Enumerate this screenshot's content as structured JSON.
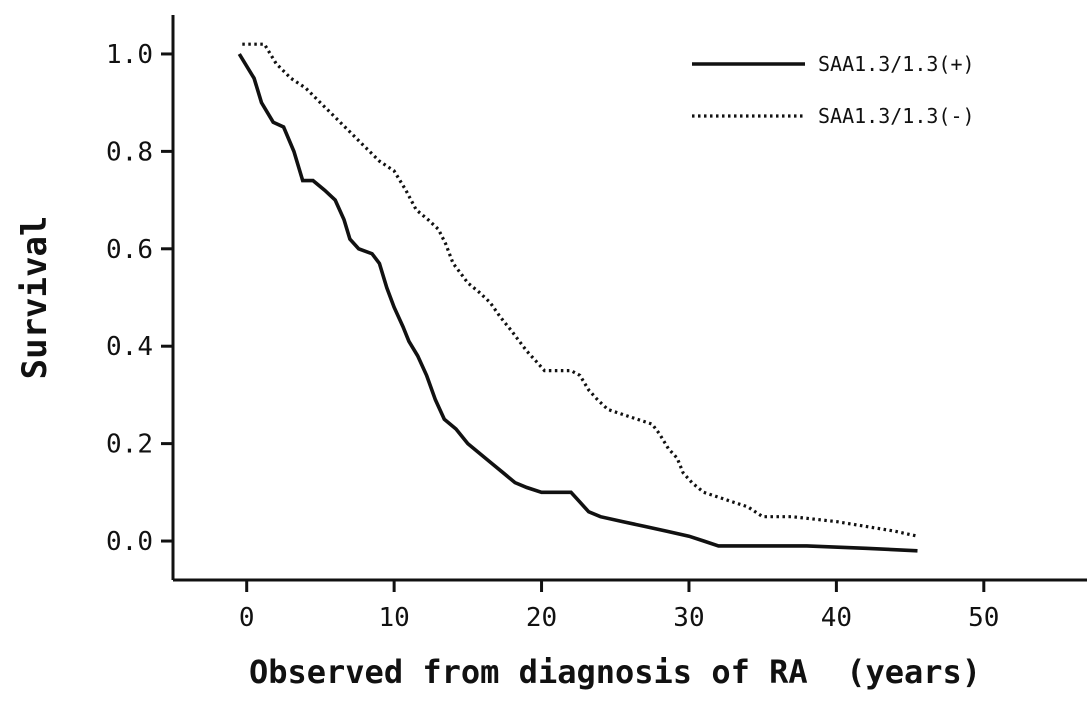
{
  "chart_data": {
    "type": "line",
    "title": "",
    "xlabel": "Observed from diagnosis of RA  (years)",
    "ylabel": "Survival",
    "xlim": [
      -5,
      57
    ],
    "ylim": [
      -0.08,
      1.08
    ],
    "x_ticks": [
      0,
      10,
      20,
      30,
      40,
      50
    ],
    "x_tick_labels": [
      "0",
      "10",
      "20",
      "30",
      "40",
      "50"
    ],
    "y_ticks": [
      0.0,
      0.2,
      0.4,
      0.6,
      0.8,
      1.0
    ],
    "y_tick_labels": [
      "0.0",
      "0.2",
      "0.4",
      "0.6",
      "0.8",
      "1.0"
    ],
    "grid": false,
    "legend_position": "top-right",
    "series": [
      {
        "name": "SAA1.3/1.3(+)",
        "line_style": "solid",
        "color": "#111111",
        "points": [
          [
            -0.5,
            1.0
          ],
          [
            0.5,
            0.95
          ],
          [
            1.0,
            0.9
          ],
          [
            1.8,
            0.86
          ],
          [
            2.5,
            0.85
          ],
          [
            3.2,
            0.8
          ],
          [
            3.8,
            0.74
          ],
          [
            4.5,
            0.74
          ],
          [
            5.3,
            0.72
          ],
          [
            6.0,
            0.7
          ],
          [
            6.6,
            0.66
          ],
          [
            7.0,
            0.62
          ],
          [
            7.6,
            0.6
          ],
          [
            8.5,
            0.59
          ],
          [
            9.0,
            0.57
          ],
          [
            9.5,
            0.52
          ],
          [
            10.0,
            0.48
          ],
          [
            10.6,
            0.44
          ],
          [
            11.0,
            0.41
          ],
          [
            11.6,
            0.38
          ],
          [
            12.2,
            0.34
          ],
          [
            12.8,
            0.29
          ],
          [
            13.4,
            0.25
          ],
          [
            14.2,
            0.23
          ],
          [
            15.0,
            0.2
          ],
          [
            15.8,
            0.18
          ],
          [
            16.6,
            0.16
          ],
          [
            17.4,
            0.14
          ],
          [
            18.2,
            0.12
          ],
          [
            19.0,
            0.11
          ],
          [
            20.0,
            0.1
          ],
          [
            21.0,
            0.1
          ],
          [
            22.0,
            0.1
          ],
          [
            22.6,
            0.08
          ],
          [
            23.2,
            0.06
          ],
          [
            24.0,
            0.05
          ],
          [
            25.5,
            0.04
          ],
          [
            27.0,
            0.03
          ],
          [
            28.5,
            0.02
          ],
          [
            30.0,
            0.01
          ],
          [
            31.0,
            0.0
          ],
          [
            32.0,
            -0.01
          ],
          [
            35.0,
            -0.01
          ],
          [
            38.0,
            -0.01
          ],
          [
            42.0,
            -0.015
          ],
          [
            45.5,
            -0.02
          ]
        ]
      },
      {
        "name": "SAA1.3/1.3(-)",
        "line_style": "dotted",
        "color": "#111111",
        "points": [
          [
            -0.3,
            1.02
          ],
          [
            1.2,
            1.02
          ],
          [
            2.0,
            0.98
          ],
          [
            3.0,
            0.95
          ],
          [
            4.0,
            0.93
          ],
          [
            5.0,
            0.9
          ],
          [
            6.0,
            0.87
          ],
          [
            7.0,
            0.84
          ],
          [
            8.0,
            0.81
          ],
          [
            9.0,
            0.78
          ],
          [
            10.0,
            0.76
          ],
          [
            10.8,
            0.72
          ],
          [
            11.5,
            0.68
          ],
          [
            12.3,
            0.66
          ],
          [
            13.0,
            0.64
          ],
          [
            13.5,
            0.61
          ],
          [
            14.0,
            0.57
          ],
          [
            14.5,
            0.55
          ],
          [
            15.0,
            0.53
          ],
          [
            15.8,
            0.51
          ],
          [
            16.5,
            0.49
          ],
          [
            17.2,
            0.46
          ],
          [
            18.0,
            0.43
          ],
          [
            18.5,
            0.41
          ],
          [
            19.0,
            0.39
          ],
          [
            19.6,
            0.37
          ],
          [
            20.2,
            0.35
          ],
          [
            21.0,
            0.35
          ],
          [
            22.0,
            0.35
          ],
          [
            22.6,
            0.34
          ],
          [
            23.2,
            0.31
          ],
          [
            23.8,
            0.29
          ],
          [
            24.5,
            0.27
          ],
          [
            25.5,
            0.26
          ],
          [
            26.5,
            0.25
          ],
          [
            27.5,
            0.24
          ],
          [
            28.0,
            0.22
          ],
          [
            28.6,
            0.19
          ],
          [
            29.2,
            0.17
          ],
          [
            29.6,
            0.14
          ],
          [
            30.2,
            0.12
          ],
          [
            30.6,
            0.11
          ],
          [
            31.0,
            0.1
          ],
          [
            32.0,
            0.09
          ],
          [
            33.0,
            0.08
          ],
          [
            34.0,
            0.07
          ],
          [
            35.0,
            0.05
          ],
          [
            37.0,
            0.05
          ],
          [
            40.0,
            0.04
          ],
          [
            42.0,
            0.03
          ],
          [
            44.0,
            0.02
          ],
          [
            45.5,
            0.01
          ]
        ]
      }
    ]
  }
}
